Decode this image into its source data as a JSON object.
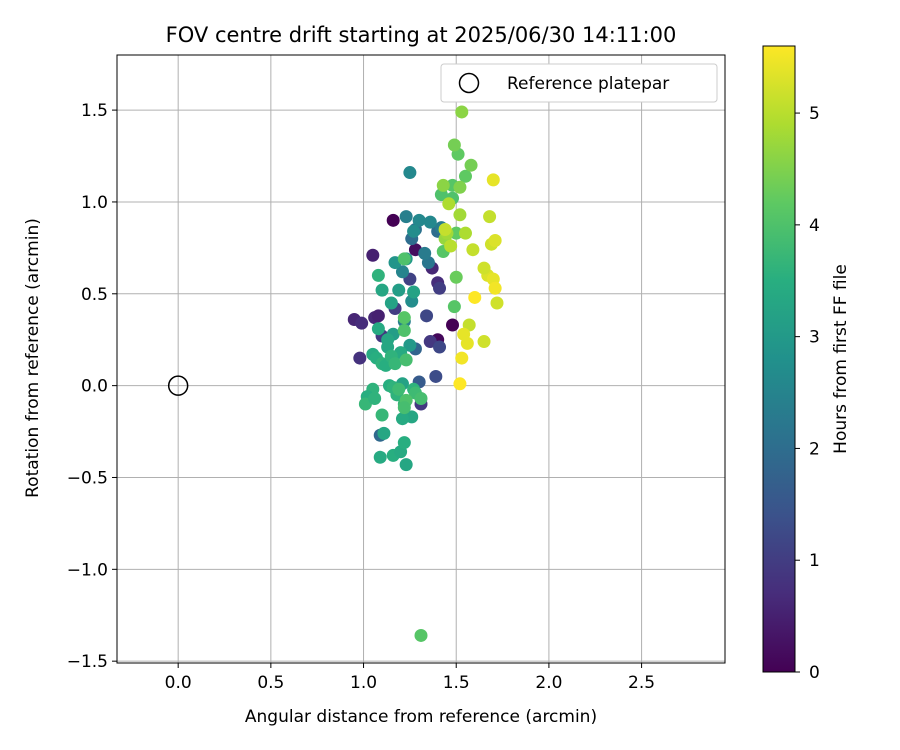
{
  "chart_data": {
    "type": "scatter",
    "title": "FOV centre drift starting at 2025/06/30 14:11:00",
    "xlabel": "Angular distance from reference (arcmin)",
    "ylabel": "Rotation from reference (arcmin)",
    "xlim": [
      -0.33,
      2.95
    ],
    "ylim": [
      -1.51,
      1.8
    ],
    "x_ticks": [
      0.0,
      0.5,
      1.0,
      1.5,
      2.0,
      2.5
    ],
    "x_tick_labels": [
      "0.0",
      "0.5",
      "1.0",
      "1.5",
      "2.0",
      "2.5"
    ],
    "y_ticks": [
      -1.5,
      -1.0,
      -0.5,
      0.0,
      0.5,
      1.0,
      1.5
    ],
    "y_tick_labels": [
      "−1.5",
      "−1.0",
      "−0.5",
      "0.0",
      "0.5",
      "1.0",
      "1.5"
    ],
    "grid": true,
    "legend": {
      "placement": "top-right",
      "entries": [
        "Reference platepar"
      ]
    },
    "reference_point": {
      "x": 0.0,
      "y": 0.0,
      "marker": "hollow-circle"
    },
    "colorbar": {
      "label": "Hours from first FF file",
      "range": [
        0,
        5.6
      ],
      "ticks": [
        0,
        1,
        2,
        3,
        4,
        5
      ],
      "tick_labels": [
        "0",
        "1",
        "2",
        "3",
        "4",
        "5"
      ],
      "colormap": "viridis"
    },
    "points": [
      {
        "x": 1.16,
        "y": 0.9,
        "h": 0.0
      },
      {
        "x": 1.48,
        "y": 0.33,
        "h": 0.0
      },
      {
        "x": 1.4,
        "y": 0.25,
        "h": 0.1
      },
      {
        "x": 1.28,
        "y": 0.74,
        "h": 0.2
      },
      {
        "x": 1.05,
        "y": 0.71,
        "h": 0.5
      },
      {
        "x": 0.95,
        "y": 0.36,
        "h": 0.6
      },
      {
        "x": 0.99,
        "y": 0.34,
        "h": 0.7
      },
      {
        "x": 1.06,
        "y": 0.37,
        "h": 0.6
      },
      {
        "x": 1.08,
        "y": 0.38,
        "h": 0.5
      },
      {
        "x": 0.98,
        "y": 0.15,
        "h": 0.8
      },
      {
        "x": 1.1,
        "y": 0.27,
        "h": 0.9
      },
      {
        "x": 1.37,
        "y": 0.64,
        "h": 0.6
      },
      {
        "x": 1.36,
        "y": 0.24,
        "h": 0.9
      },
      {
        "x": 1.31,
        "y": -0.1,
        "h": 0.9
      },
      {
        "x": 1.4,
        "y": 0.56,
        "h": 0.7
      },
      {
        "x": 1.41,
        "y": 0.53,
        "h": 1.0
      },
      {
        "x": 1.17,
        "y": 0.42,
        "h": 1.0
      },
      {
        "x": 1.41,
        "y": 0.21,
        "h": 1.2
      },
      {
        "x": 1.39,
        "y": 0.05,
        "h": 1.3
      },
      {
        "x": 1.25,
        "y": 0.58,
        "h": 1.1
      },
      {
        "x": 1.34,
        "y": 0.38,
        "h": 1.2
      },
      {
        "x": 1.3,
        "y": 0.02,
        "h": 1.6
      },
      {
        "x": 1.28,
        "y": 0.2,
        "h": 1.8
      },
      {
        "x": 1.09,
        "y": -0.27,
        "h": 1.9
      },
      {
        "x": 1.26,
        "y": 0.8,
        "h": 2.0
      },
      {
        "x": 1.28,
        "y": 0.85,
        "h": 2.1
      },
      {
        "x": 1.35,
        "y": 0.67,
        "h": 2.2
      },
      {
        "x": 1.33,
        "y": 0.72,
        "h": 2.3
      },
      {
        "x": 1.4,
        "y": 0.84,
        "h": 2.0
      },
      {
        "x": 1.42,
        "y": 0.86,
        "h": 2.3
      },
      {
        "x": 1.25,
        "y": 1.16,
        "h": 2.6
      },
      {
        "x": 1.23,
        "y": 0.92,
        "h": 2.4
      },
      {
        "x": 1.3,
        "y": 0.9,
        "h": 2.6
      },
      {
        "x": 1.27,
        "y": 0.84,
        "h": 2.7
      },
      {
        "x": 1.36,
        "y": 0.89,
        "h": 2.6
      },
      {
        "x": 1.21,
        "y": 0.62,
        "h": 2.5
      },
      {
        "x": 1.26,
        "y": 0.46,
        "h": 2.7
      },
      {
        "x": 1.22,
        "y": 0.35,
        "h": 2.4
      },
      {
        "x": 1.17,
        "y": 0.67,
        "h": 2.9
      },
      {
        "x": 1.23,
        "y": 0.69,
        "h": 3.0
      },
      {
        "x": 1.19,
        "y": 0.52,
        "h": 3.1
      },
      {
        "x": 1.15,
        "y": 0.45,
        "h": 3.2
      },
      {
        "x": 1.27,
        "y": 0.51,
        "h": 3.2
      },
      {
        "x": 1.25,
        "y": 0.22,
        "h": 3.0
      },
      {
        "x": 1.16,
        "y": 0.28,
        "h": 3.1
      },
      {
        "x": 1.13,
        "y": 0.21,
        "h": 3.3
      },
      {
        "x": 1.13,
        "y": 0.25,
        "h": 3.3
      },
      {
        "x": 1.1,
        "y": 0.52,
        "h": 3.3
      },
      {
        "x": 1.2,
        "y": 0.18,
        "h": 3.4
      },
      {
        "x": 1.21,
        "y": 0.01,
        "h": 3.2
      },
      {
        "x": 1.26,
        "y": -0.17,
        "h": 3.3
      },
      {
        "x": 1.21,
        "y": -0.18,
        "h": 3.4
      },
      {
        "x": 1.11,
        "y": -0.26,
        "h": 3.3
      },
      {
        "x": 1.09,
        "y": -0.39,
        "h": 3.4
      },
      {
        "x": 1.16,
        "y": -0.38,
        "h": 3.5
      },
      {
        "x": 1.2,
        "y": -0.36,
        "h": 3.4
      },
      {
        "x": 1.22,
        "y": -0.31,
        "h": 3.5
      },
      {
        "x": 1.23,
        "y": -0.43,
        "h": 3.3
      },
      {
        "x": 1.05,
        "y": 0.17,
        "h": 3.4
      },
      {
        "x": 1.07,
        "y": 0.15,
        "h": 3.5
      },
      {
        "x": 1.08,
        "y": 0.31,
        "h": 3.4
      },
      {
        "x": 1.1,
        "y": 0.12,
        "h": 3.6
      },
      {
        "x": 1.12,
        "y": 0.11,
        "h": 3.5
      },
      {
        "x": 1.15,
        "y": 0.16,
        "h": 3.6
      },
      {
        "x": 1.17,
        "y": 0.12,
        "h": 3.7
      },
      {
        "x": 1.14,
        "y": 0.0,
        "h": 3.5
      },
      {
        "x": 1.16,
        "y": -0.01,
        "h": 3.6
      },
      {
        "x": 1.05,
        "y": -0.02,
        "h": 3.6
      },
      {
        "x": 1.02,
        "y": -0.06,
        "h": 3.5
      },
      {
        "x": 1.01,
        "y": -0.1,
        "h": 3.7
      },
      {
        "x": 1.06,
        "y": -0.07,
        "h": 3.6
      },
      {
        "x": 1.1,
        "y": -0.16,
        "h": 3.7
      },
      {
        "x": 1.18,
        "y": -0.05,
        "h": 3.6
      },
      {
        "x": 1.22,
        "y": -0.1,
        "h": 3.7
      },
      {
        "x": 1.19,
        "y": -0.02,
        "h": 3.8
      },
      {
        "x": 1.27,
        "y": -0.02,
        "h": 3.6
      },
      {
        "x": 1.28,
        "y": -0.04,
        "h": 3.8
      },
      {
        "x": 1.31,
        "y": -0.07,
        "h": 3.9
      },
      {
        "x": 1.23,
        "y": -0.08,
        "h": 4.0
      },
      {
        "x": 1.22,
        "y": -0.12,
        "h": 3.9
      },
      {
        "x": 1.23,
        "y": 0.14,
        "h": 3.9
      },
      {
        "x": 1.22,
        "y": 0.3,
        "h": 4.0
      },
      {
        "x": 1.22,
        "y": 0.37,
        "h": 4.1
      },
      {
        "x": 1.22,
        "y": 0.69,
        "h": 4.0
      },
      {
        "x": 1.08,
        "y": 0.6,
        "h": 3.6
      },
      {
        "x": 1.43,
        "y": 0.73,
        "h": 4.1
      },
      {
        "x": 1.42,
        "y": 1.04,
        "h": 4.0
      },
      {
        "x": 1.48,
        "y": 1.09,
        "h": 4.1
      },
      {
        "x": 1.48,
        "y": 1.02,
        "h": 4.0
      },
      {
        "x": 1.5,
        "y": 0.83,
        "h": 4.2
      },
      {
        "x": 1.49,
        "y": 0.43,
        "h": 4.1
      },
      {
        "x": 1.5,
        "y": 0.59,
        "h": 4.3
      },
      {
        "x": 1.31,
        "y": -1.36,
        "h": 4.1
      },
      {
        "x": 1.55,
        "y": 1.14,
        "h": 4.2
      },
      {
        "x": 1.51,
        "y": 1.26,
        "h": 4.2
      },
      {
        "x": 1.49,
        "y": 1.31,
        "h": 4.4
      },
      {
        "x": 1.58,
        "y": 1.2,
        "h": 4.4
      },
      {
        "x": 1.53,
        "y": 1.49,
        "h": 4.6
      },
      {
        "x": 1.43,
        "y": 1.09,
        "h": 4.6
      },
      {
        "x": 1.52,
        "y": 1.08,
        "h": 4.5
      },
      {
        "x": 1.52,
        "y": 0.93,
        "h": 4.8
      },
      {
        "x": 1.46,
        "y": 0.99,
        "h": 4.9
      },
      {
        "x": 1.44,
        "y": 0.8,
        "h": 4.7
      },
      {
        "x": 1.45,
        "y": 0.83,
        "h": 4.8
      },
      {
        "x": 1.55,
        "y": 0.83,
        "h": 4.9
      },
      {
        "x": 1.47,
        "y": 0.76,
        "h": 5.0
      },
      {
        "x": 1.59,
        "y": 0.74,
        "h": 5.1
      },
      {
        "x": 1.44,
        "y": 0.85,
        "h": 5.1
      },
      {
        "x": 1.68,
        "y": 0.92,
        "h": 5.1
      },
      {
        "x": 1.69,
        "y": 0.77,
        "h": 5.2
      },
      {
        "x": 1.71,
        "y": 0.79,
        "h": 5.3
      },
      {
        "x": 1.67,
        "y": 0.6,
        "h": 5.3
      },
      {
        "x": 1.65,
        "y": 0.64,
        "h": 5.2
      },
      {
        "x": 1.7,
        "y": 0.58,
        "h": 5.4
      },
      {
        "x": 1.71,
        "y": 0.53,
        "h": 5.5
      },
      {
        "x": 1.72,
        "y": 0.45,
        "h": 5.2
      },
      {
        "x": 1.6,
        "y": 0.48,
        "h": 5.6
      },
      {
        "x": 1.57,
        "y": 0.33,
        "h": 5.1
      },
      {
        "x": 1.54,
        "y": 0.28,
        "h": 5.4
      },
      {
        "x": 1.56,
        "y": 0.23,
        "h": 5.4
      },
      {
        "x": 1.65,
        "y": 0.24,
        "h": 5.2
      },
      {
        "x": 1.53,
        "y": 0.15,
        "h": 5.5
      },
      {
        "x": 1.52,
        "y": 0.01,
        "h": 5.6
      },
      {
        "x": 1.7,
        "y": 1.12,
        "h": 5.4
      }
    ]
  },
  "colors": {
    "reference_marker": "#000000",
    "grid": "#b0b0b0",
    "legend_border": "#cccccc"
  }
}
